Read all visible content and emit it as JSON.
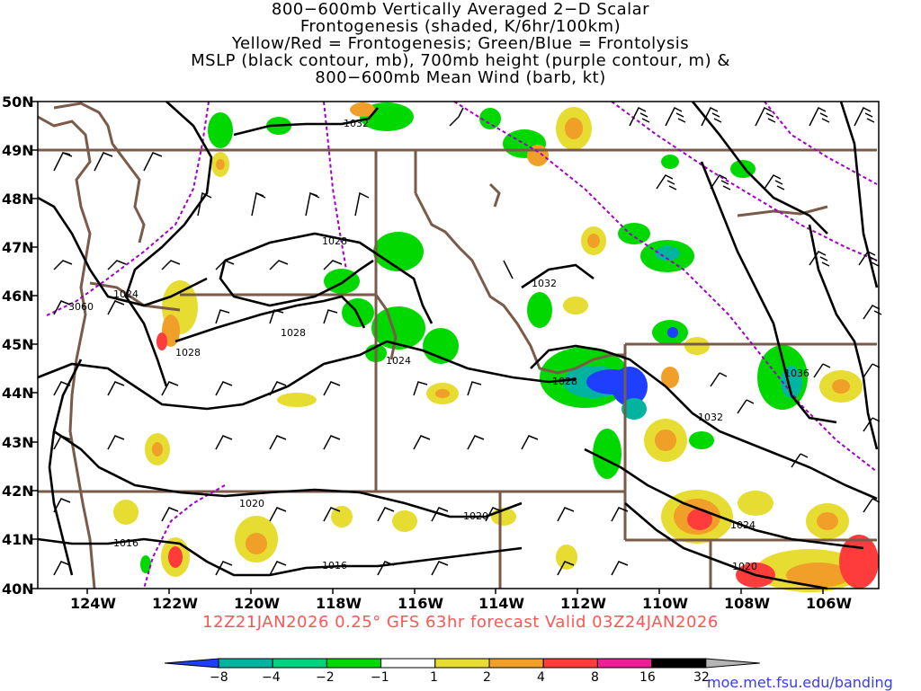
{
  "title": {
    "line1": "800−600mb Vertically Averaged 2−D Scalar",
    "line2": "Frontogenesis (shaded, K/6hr/100km)",
    "line3": "Yellow/Red = Frontogenesis;  Green/Blue = Frontolysis",
    "line4": "MSLP (black contour, mb), 700mb height (purple contour, m) &",
    "line5": "800−600mb Mean Wind (barb, kt)"
  },
  "lat_labels": [
    "50N",
    "49N",
    "48N",
    "47N",
    "46N",
    "45N",
    "44N",
    "43N",
    "42N",
    "41N",
    "40N"
  ],
  "lon_labels": [
    "124W",
    "122W",
    "120W",
    "118W",
    "116W",
    "114W",
    "112W",
    "110W",
    "108W",
    "106W"
  ],
  "mslp_labels": [
    "1032",
    "1028",
    "1028",
    "1028",
    "1024",
    "1024",
    "1032",
    "1028",
    "1032",
    "1036",
    "1020",
    "1020",
    "1016",
    "1016",
    "1024",
    "1020"
  ],
  "height_labels": [
    "3060"
  ],
  "valid_time": "12Z21JAN2026  0.25°  GFS  63hr  forecast  Valid  03Z24JAN2026",
  "colorbar": {
    "labels": [
      "−8",
      "−4",
      "−2",
      "−1",
      "1",
      "2",
      "4",
      "8",
      "16",
      "32"
    ],
    "colors": [
      "#1f3fff",
      "#00b4a0",
      "#00d47c",
      "#00d800",
      "#ffffff",
      "#e6dc32",
      "#f0a028",
      "#ff3c3c",
      "#f01e96",
      "#000000",
      "#b4b4b4"
    ]
  },
  "credit": "moe.met.fsu.edu/banding",
  "colors": {
    "mslp": "#000000",
    "height": "#a000c8",
    "border": "#7a5a48",
    "valid": "#ff5555"
  }
}
